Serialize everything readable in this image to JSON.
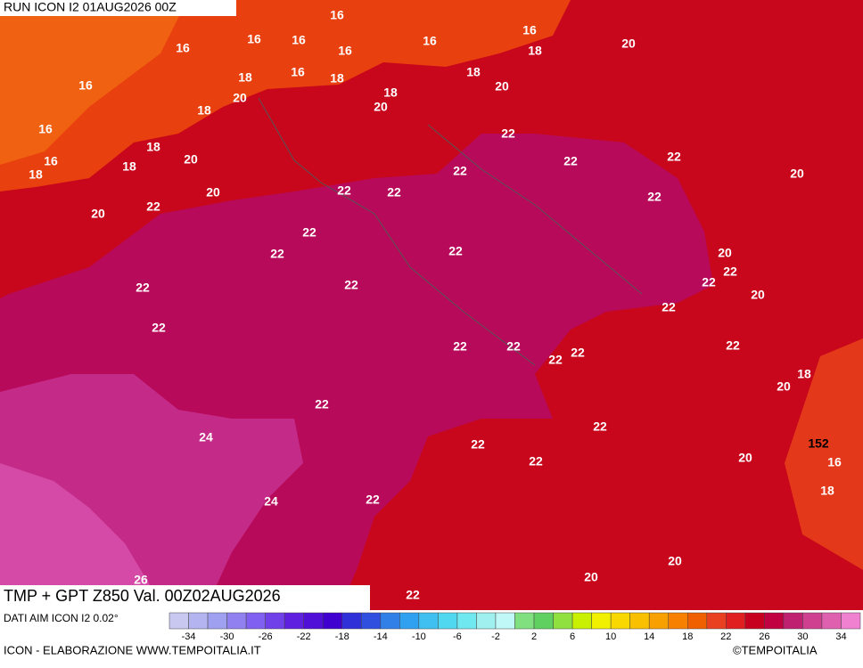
{
  "header": {
    "run": "RUN ICON I2 01AUG2026 00Z"
  },
  "map": {
    "title": "TMP + GPT Z850 Val. 00Z02AUG2026",
    "data_source": "DATI AIM ICON I2 0.02°",
    "contour_labels": [
      16,
      16,
      16,
      16,
      16,
      16,
      16,
      18,
      20,
      16,
      18,
      16,
      18,
      18,
      20,
      20,
      18,
      20,
      18,
      16,
      18,
      16,
      18,
      18,
      20,
      22,
      22,
      22,
      20,
      22,
      22,
      22,
      22,
      20,
      22,
      20,
      22,
      22,
      20,
      22,
      22,
      22,
      22,
      20,
      22,
      22,
      22,
      22,
      22,
      22,
      22,
      22,
      18,
      20,
      22,
      22,
      24,
      152,
      16,
      22,
      22,
      20,
      18,
      24,
      22,
      20,
      20,
      26,
      22
    ]
  },
  "colorbar": {
    "ticks": [
      -34,
      -30,
      -26,
      -22,
      -18,
      -14,
      -10,
      -6,
      -2,
      2,
      6,
      10,
      14,
      18,
      22,
      26,
      30,
      34
    ],
    "colors": [
      "#c8c8f0",
      "#b4b4f0",
      "#a0a0f0",
      "#9080f0",
      "#8060f0",
      "#7040e8",
      "#6020e0",
      "#5010d8",
      "#4000d0",
      "#3030d8",
      "#3050e0",
      "#3080e8",
      "#30a0f0",
      "#40c0f0",
      "#50d8f0",
      "#70e8f0",
      "#a0f0f0",
      "#c0f8f8",
      "#80e080",
      "#60d060",
      "#90e040",
      "#c8f000",
      "#f0f000",
      "#f8d800",
      "#f8c000",
      "#f8a000",
      "#f88000",
      "#f06000",
      "#e84020",
      "#e02020",
      "#c80020",
      "#c00040",
      "#c02070",
      "#d04090",
      "#e060b0",
      "#f080d0"
    ]
  },
  "footer": {
    "credit": "ICON - ELABORAZIONE WWW.TEMPOITALIA.IT",
    "copyright": "©TEMPOITALIA"
  }
}
